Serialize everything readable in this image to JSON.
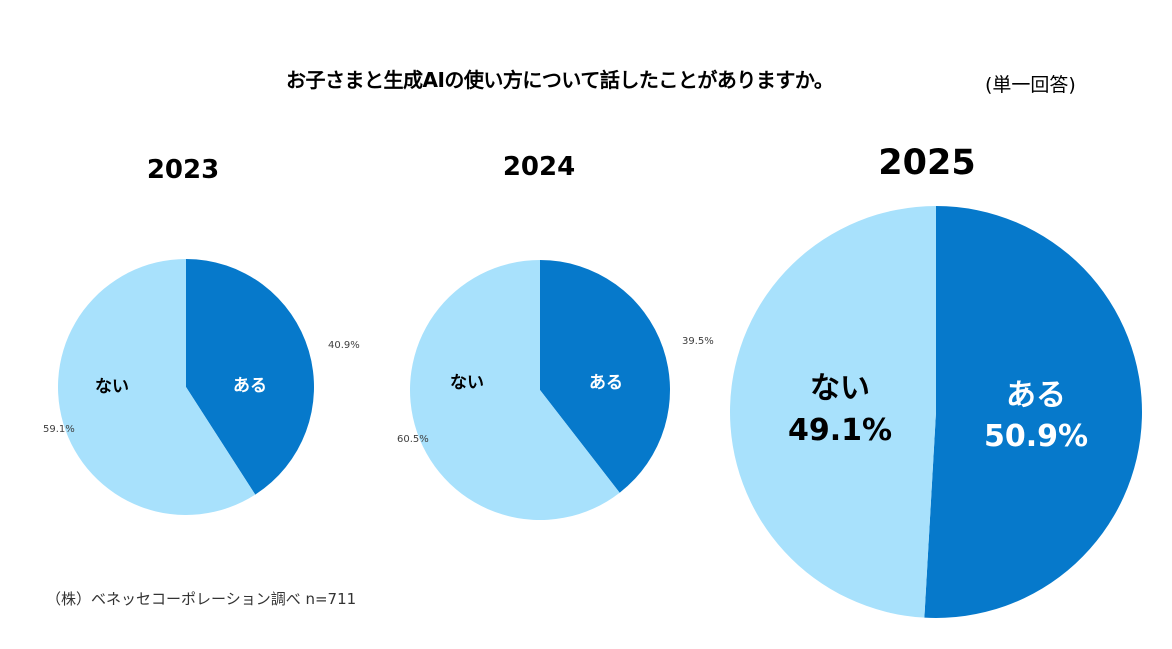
{
  "header": {
    "title": "お子さまと生成AIの使い方について話したことがありますか。",
    "note": "(単一回答)"
  },
  "footer": {
    "source": "（株）ベネッセコーポレーション調べ n=711"
  },
  "colors": {
    "aru": "#0679CB",
    "nai": "#A8E1FC",
    "label_dark": "#000000",
    "label_light": "#FFFFFF",
    "outer_label": "#404040"
  },
  "chart_data": [
    {
      "type": "pie",
      "title": "2023",
      "categories": [
        "ある",
        "ない"
      ],
      "values": [
        40.9,
        59.1
      ],
      "unit": "%",
      "data_labels": [
        "40.9%",
        "59.1%"
      ],
      "label_placement": "outside"
    },
    {
      "type": "pie",
      "title": "2024",
      "categories": [
        "ある",
        "ない"
      ],
      "values": [
        39.5,
        60.5
      ],
      "unit": "%",
      "data_labels": [
        "39.5%",
        "60.5%"
      ],
      "label_placement": "outside"
    },
    {
      "type": "pie",
      "title": "2025",
      "categories": [
        "ある",
        "ない"
      ],
      "values": [
        50.9,
        49.1
      ],
      "unit": "%",
      "data_labels": [
        "50.9%",
        "49.1%"
      ],
      "label_placement": "inside"
    }
  ]
}
